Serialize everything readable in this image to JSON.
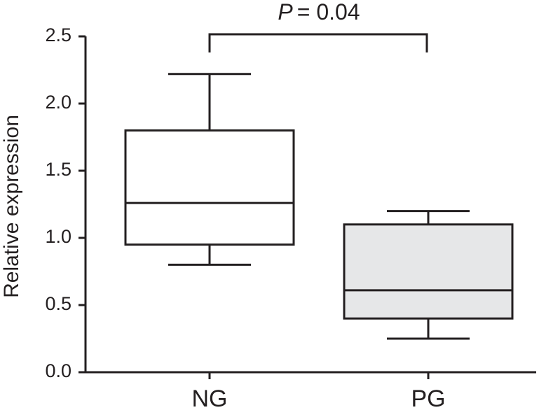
{
  "chart_data": {
    "type": "box",
    "ylabel": "Relative expression",
    "categories": [
      "NG",
      "PG"
    ],
    "boxes": [
      {
        "min": 0.8,
        "q1": 0.95,
        "median": 1.26,
        "q3": 1.8,
        "max": 2.22,
        "color": "#ffffff"
      },
      {
        "min": 0.25,
        "q1": 0.4,
        "median": 0.61,
        "q3": 1.1,
        "max": 1.2,
        "color": "#e6e7e8"
      }
    ],
    "ylim": [
      0,
      2.5
    ],
    "yticks": [
      {
        "value": 0,
        "label": "0.0"
      },
      0.5,
      {
        "value": 1,
        "label": "1.0"
      },
      1.5,
      {
        "value": 2,
        "label": "2.0"
      },
      2.5
    ],
    "annotation_symbol": "P",
    "annotation_text": "= 0.04"
  }
}
